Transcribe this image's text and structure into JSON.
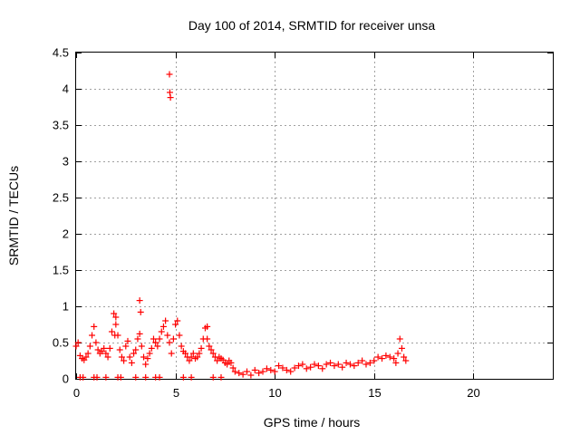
{
  "chart_data": {
    "type": "scatter",
    "title": "Day 100 of 2014, SRMTID for receiver unsa",
    "xlabel": "GPS time / hours",
    "ylabel": "SRMTID / TECUs",
    "xlim": [
      0,
      24
    ],
    "ylim": [
      0,
      4.5
    ],
    "xticks": [
      0,
      5,
      10,
      15,
      20
    ],
    "yticks": [
      0,
      0.5,
      1,
      1.5,
      2,
      2.5,
      3,
      3.5,
      4,
      4.5
    ],
    "grid": true,
    "marker_color": "#ff0000",
    "series": [
      {
        "name": "SRMTID",
        "marker": "+",
        "x": [
          0.0,
          0.1,
          0.2,
          0.3,
          0.4,
          0.5,
          0.6,
          0.7,
          0.8,
          0.9,
          1.0,
          1.1,
          1.2,
          1.3,
          1.4,
          1.5,
          1.6,
          1.7,
          1.8,
          1.9,
          2.0,
          2.1,
          2.2,
          2.3,
          2.4,
          2.5,
          2.6,
          2.7,
          2.8,
          2.9,
          3.0,
          3.1,
          3.2,
          3.3,
          3.4,
          3.5,
          3.6,
          3.7,
          3.8,
          3.9,
          4.0,
          4.1,
          4.2,
          4.3,
          4.4,
          4.5,
          4.6,
          4.7,
          4.8,
          4.9,
          5.0,
          5.1,
          5.2,
          5.3,
          5.4,
          5.5,
          5.6,
          5.7,
          5.8,
          5.9,
          6.0,
          6.1,
          6.2,
          6.3,
          6.4,
          6.5,
          6.6,
          6.7,
          6.8,
          6.9,
          7.0,
          7.1,
          7.2,
          7.3,
          7.4,
          7.5,
          7.6,
          7.7,
          7.8,
          7.9,
          8.0,
          8.2,
          8.4,
          8.6,
          8.8,
          9.0,
          9.2,
          9.4,
          9.6,
          9.8,
          10.0,
          10.2,
          10.4,
          10.6,
          10.8,
          11.0,
          11.2,
          11.4,
          11.6,
          11.8,
          12.0,
          12.2,
          12.4,
          12.6,
          12.8,
          13.0,
          13.2,
          13.4,
          13.6,
          13.8,
          14.0,
          14.2,
          14.4,
          14.6,
          14.8,
          15.0,
          15.2,
          15.4,
          15.6,
          15.8,
          16.0,
          16.1,
          16.2,
          16.3,
          16.4,
          16.5,
          16.6,
          3.2,
          3.25,
          4.7,
          4.72,
          4.75,
          1.95,
          2.0,
          6.6,
          0.2,
          0.9,
          1.5,
          2.1,
          3.0,
          4.0,
          5.4,
          6.9,
          0.35,
          1.05,
          2.25,
          3.5,
          4.2,
          5.8,
          7.3
        ],
        "y": [
          0.45,
          0.5,
          0.32,
          0.28,
          0.26,
          0.3,
          0.35,
          0.45,
          0.6,
          0.72,
          0.5,
          0.4,
          0.35,
          0.38,
          0.42,
          0.35,
          0.3,
          0.42,
          0.65,
          0.9,
          0.85,
          0.6,
          0.4,
          0.3,
          0.25,
          0.45,
          0.52,
          0.3,
          0.22,
          0.35,
          0.4,
          0.55,
          0.62,
          0.45,
          0.3,
          0.2,
          0.28,
          0.35,
          0.42,
          0.55,
          0.5,
          0.45,
          0.55,
          0.65,
          0.72,
          0.8,
          0.6,
          0.5,
          0.35,
          0.55,
          0.75,
          0.8,
          0.6,
          0.45,
          0.38,
          0.35,
          0.3,
          0.25,
          0.3,
          0.35,
          0.28,
          0.3,
          0.35,
          0.42,
          0.55,
          0.7,
          0.55,
          0.45,
          0.4,
          0.35,
          0.3,
          0.25,
          0.3,
          0.28,
          0.26,
          0.22,
          0.2,
          0.25,
          0.22,
          0.15,
          0.1,
          0.08,
          0.06,
          0.1,
          0.05,
          0.12,
          0.08,
          0.1,
          0.14,
          0.12,
          0.1,
          0.18,
          0.15,
          0.12,
          0.1,
          0.15,
          0.18,
          0.2,
          0.14,
          0.16,
          0.2,
          0.18,
          0.14,
          0.2,
          0.22,
          0.18,
          0.2,
          0.16,
          0.22,
          0.2,
          0.18,
          0.22,
          0.25,
          0.2,
          0.22,
          0.25,
          0.3,
          0.28,
          0.32,
          0.3,
          0.28,
          0.22,
          0.35,
          0.55,
          0.42,
          0.3,
          0.25,
          1.08,
          0.92,
          4.2,
          3.95,
          3.88,
          0.6,
          0.75,
          0.72,
          0.02,
          0.02,
          0.02,
          0.02,
          0.02,
          0.02,
          0.02,
          0.02,
          0.02,
          0.02,
          0.02,
          0.02,
          0.02,
          0.02,
          0.02
        ]
      }
    ]
  }
}
